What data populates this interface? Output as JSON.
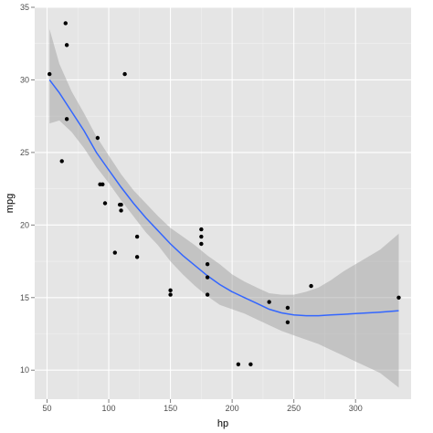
{
  "chart_data": {
    "type": "scatter",
    "xlabel": "hp",
    "ylabel": "mpg",
    "xlim": [
      40,
      345
    ],
    "ylim": [
      8,
      35
    ],
    "x_ticks": [
      50,
      100,
      150,
      200,
      250,
      300
    ],
    "y_ticks": [
      10,
      15,
      20,
      25,
      30,
      35
    ],
    "grid": true,
    "points": [
      {
        "x": 52,
        "y": 30.4
      },
      {
        "x": 62,
        "y": 24.4
      },
      {
        "x": 65,
        "y": 33.9
      },
      {
        "x": 66,
        "y": 32.4
      },
      {
        "x": 66,
        "y": 27.3
      },
      {
        "x": 91,
        "y": 26.0
      },
      {
        "x": 93,
        "y": 22.8
      },
      {
        "x": 95,
        "y": 22.8
      },
      {
        "x": 97,
        "y": 21.5
      },
      {
        "x": 105,
        "y": 18.1
      },
      {
        "x": 109,
        "y": 21.4
      },
      {
        "x": 110,
        "y": 21.0
      },
      {
        "x": 110,
        "y": 21.4
      },
      {
        "x": 113,
        "y": 30.4
      },
      {
        "x": 123,
        "y": 17.8
      },
      {
        "x": 123,
        "y": 19.2
      },
      {
        "x": 150,
        "y": 15.2
      },
      {
        "x": 150,
        "y": 15.5
      },
      {
        "x": 175,
        "y": 18.7
      },
      {
        "x": 175,
        "y": 19.7
      },
      {
        "x": 175,
        "y": 19.2
      },
      {
        "x": 180,
        "y": 16.4
      },
      {
        "x": 180,
        "y": 17.3
      },
      {
        "x": 180,
        "y": 15.2
      },
      {
        "x": 205,
        "y": 10.4
      },
      {
        "x": 215,
        "y": 10.4
      },
      {
        "x": 230,
        "y": 14.7
      },
      {
        "x": 245,
        "y": 13.3
      },
      {
        "x": 245,
        "y": 14.3
      },
      {
        "x": 264,
        "y": 15.8
      },
      {
        "x": 335,
        "y": 15.0
      }
    ],
    "smooth": {
      "x": [
        52,
        60,
        70,
        80,
        90,
        100,
        110,
        120,
        130,
        140,
        150,
        160,
        170,
        180,
        190,
        200,
        210,
        220,
        230,
        240,
        250,
        260,
        270,
        280,
        290,
        300,
        310,
        320,
        335
      ],
      "y": [
        30.0,
        29.1,
        27.8,
        26.5,
        25.0,
        23.8,
        22.6,
        21.5,
        20.5,
        19.6,
        18.7,
        17.9,
        17.2,
        16.5,
        15.9,
        15.4,
        15.0,
        14.6,
        14.2,
        13.95,
        13.8,
        13.75,
        13.75,
        13.8,
        13.85,
        13.9,
        13.95,
        14.0,
        14.1
      ],
      "lower": [
        27.0,
        27.2,
        26.4,
        25.3,
        24.0,
        22.9,
        21.7,
        20.6,
        19.5,
        18.6,
        17.5,
        16.6,
        15.8,
        15.1,
        14.5,
        14.2,
        13.9,
        13.5,
        13.1,
        12.7,
        12.4,
        12.1,
        11.8,
        11.4,
        11.0,
        10.6,
        10.2,
        9.8,
        8.8
      ],
      "upper": [
        33.5,
        31.1,
        29.2,
        27.7,
        26.1,
        24.8,
        23.5,
        22.4,
        21.5,
        20.6,
        19.8,
        19.2,
        18.6,
        17.9,
        17.3,
        16.6,
        16.1,
        15.7,
        15.3,
        15.2,
        15.2,
        15.4,
        15.7,
        16.2,
        16.8,
        17.3,
        17.8,
        18.3,
        19.4
      ]
    },
    "colors": {
      "panel": "#e5e5e5",
      "grid_major": "#ffffff",
      "grid_minor": "#f2f2f2",
      "point": "#000000",
      "line": "#3366ff",
      "band": "#999999"
    }
  }
}
